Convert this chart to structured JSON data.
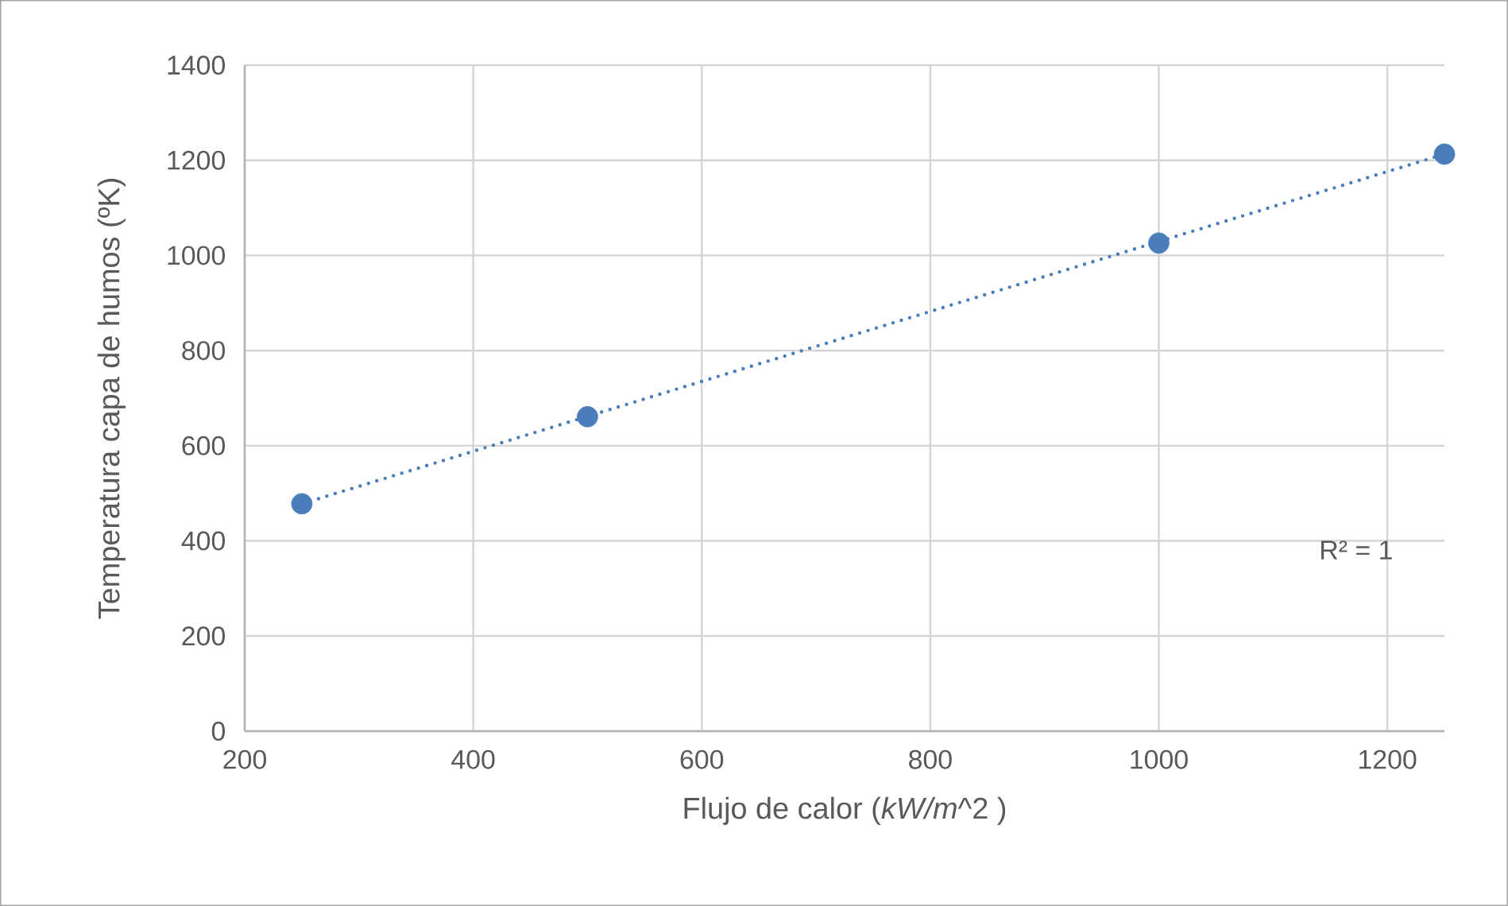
{
  "chart_data": {
    "type": "scatter",
    "xlabel": "Flujo de calor (*kW/m*^2 )",
    "ylabel": "Temperatura capa de humos (ºK)",
    "series": [
      {
        "color": "#4a7ebb",
        "marker": "circle",
        "x": [
          250,
          500,
          1000,
          1250
        ],
        "values": [
          478,
          661,
          1026,
          1213
        ]
      },
      {
        "type": "line",
        "color": "#4a7ebb",
        "marker": "none",
        "line_style": "dotted",
        "x": [
          250,
          1250
        ],
        "values": [
          478,
          1213
        ]
      }
    ],
    "xlim": [
      200,
      1250
    ],
    "ylim": [
      0,
      1400
    ],
    "xticks": [
      200,
      400,
      600,
      800,
      1000,
      1200
    ],
    "yticks": [
      0,
      200,
      400,
      600,
      800,
      1000,
      1200,
      1400
    ],
    "grid": true,
    "annotations": [
      "R² = 1"
    ]
  }
}
